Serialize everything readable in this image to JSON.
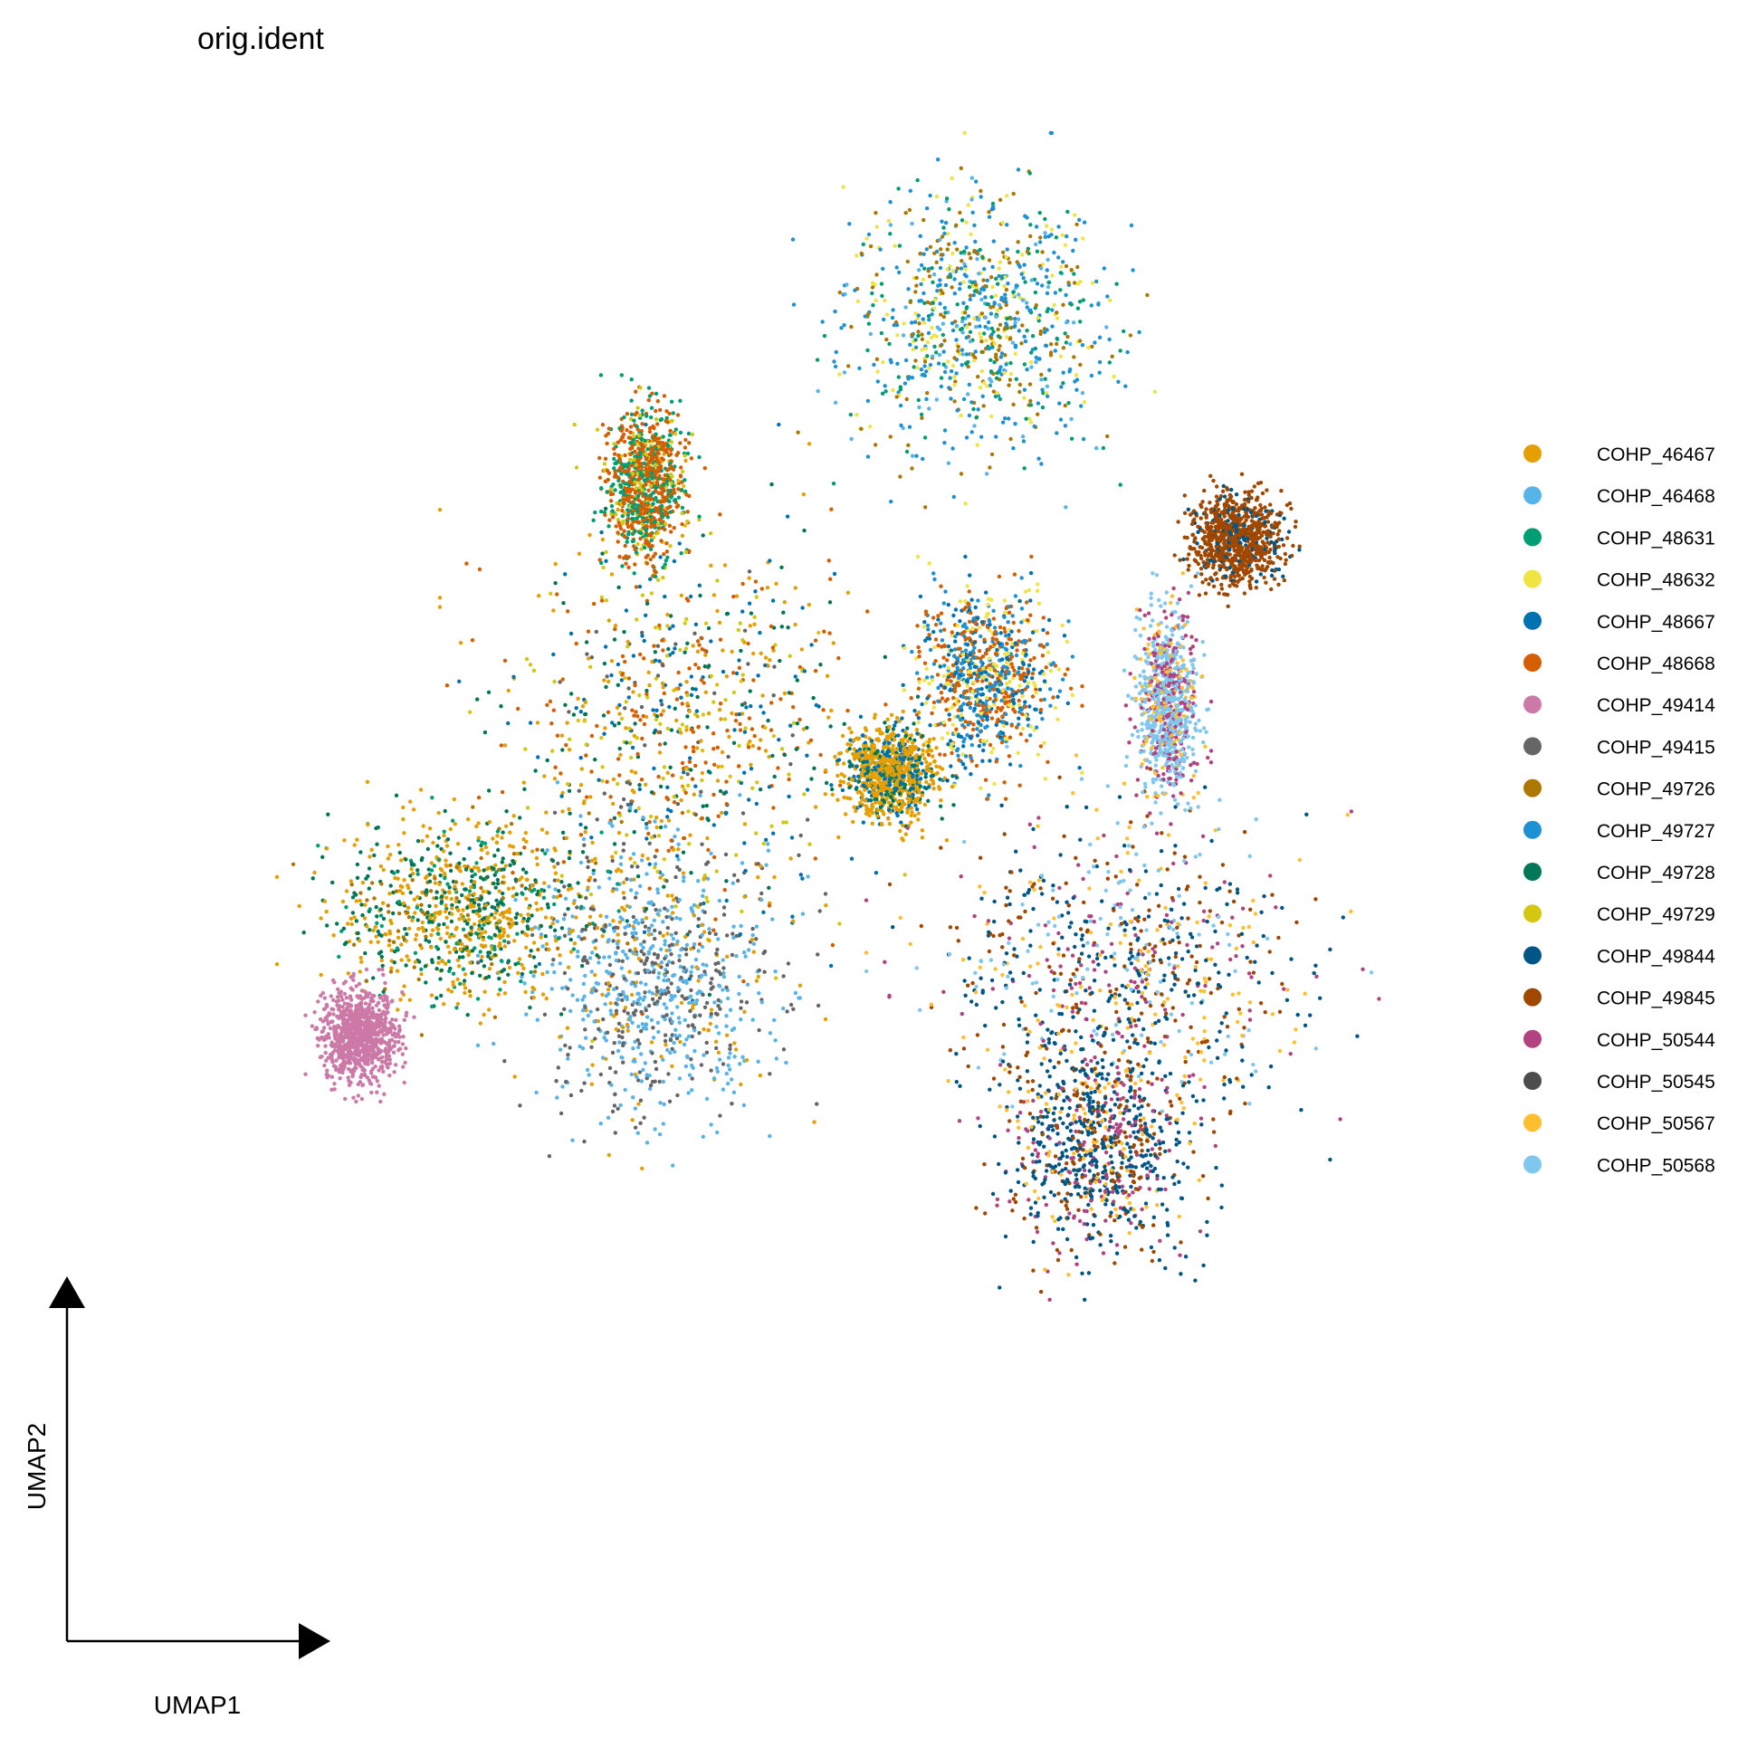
{
  "chart_data": {
    "type": "scatter",
    "title": "orig.ident",
    "xlabel": "UMAP1",
    "ylabel": "UMAP2",
    "grid": false,
    "axes": "arrow-stubs (no tick labels)",
    "legend_position": "right",
    "series": [
      {
        "name": "COHP_46467",
        "color": "#E69F00"
      },
      {
        "name": "COHP_46468",
        "color": "#56B4E9"
      },
      {
        "name": "COHP_48631",
        "color": "#009E73"
      },
      {
        "name": "COHP_48632",
        "color": "#F0E442"
      },
      {
        "name": "COHP_48667",
        "color": "#0072B2"
      },
      {
        "name": "COHP_48668",
        "color": "#D55E00"
      },
      {
        "name": "COHP_49414",
        "color": "#CC79A7"
      },
      {
        "name": "COHP_49415",
        "color": "#666666"
      },
      {
        "name": "COHP_49726",
        "color": "#AD7700"
      },
      {
        "name": "COHP_49727",
        "color": "#1C91D4"
      },
      {
        "name": "COHP_49728",
        "color": "#007756"
      },
      {
        "name": "COHP_49729",
        "color": "#D5C711"
      },
      {
        "name": "COHP_49844",
        "color": "#005685"
      },
      {
        "name": "COHP_49845",
        "color": "#A04700"
      },
      {
        "name": "COHP_50544",
        "color": "#B14380"
      },
      {
        "name": "COHP_50545",
        "color": "#4D4D4D"
      },
      {
        "name": "COHP_50567",
        "color": "#FFBE2D"
      },
      {
        "name": "COHP_50568",
        "color": "#80C7EF"
      }
    ],
    "clusters": [
      {
        "id": "top",
        "cx": 0.62,
        "cy": 0.82,
        "rx": 0.085,
        "ry": 0.085,
        "mix": {
          "COHP_49726": 3,
          "COHP_48631": 2,
          "COHP_48632": 2,
          "COHP_49727": 4,
          "COHP_46468": 1
        }
      },
      {
        "id": "left-main",
        "cx": 0.4,
        "cy": 0.52,
        "rx": 0.11,
        "ry": 0.14,
        "mix": {
          "COHP_48668": 4,
          "COHP_46467": 3,
          "COHP_49729": 3,
          "COHP_49728": 3,
          "COHP_48667": 3,
          "COHP_49415": 1
        }
      },
      {
        "id": "left-lower",
        "cx": 0.38,
        "cy": 0.34,
        "rx": 0.08,
        "ry": 0.09,
        "mix": {
          "COHP_46468": 4,
          "COHP_49415": 3,
          "COHP_46467": 1
        }
      },
      {
        "id": "left-arm",
        "cx": 0.24,
        "cy": 0.39,
        "rx": 0.085,
        "ry": 0.06,
        "mix": {
          "COHP_46467": 4,
          "COHP_49728": 3,
          "COHP_48631": 1,
          "COHP_49726": 1
        }
      },
      {
        "id": "left-tail",
        "cx": 0.165,
        "cy": 0.3,
        "rx": 0.025,
        "ry": 0.03,
        "mix": {
          "COHP_49414": 5
        }
      },
      {
        "id": "left-spur",
        "cx": 0.375,
        "cy": 0.7,
        "rx": 0.025,
        "ry": 0.05,
        "mix": {
          "COHP_48668": 3,
          "COHP_48631": 2,
          "COHP_49729": 1
        }
      },
      {
        "id": "mid-cluster",
        "cx": 0.625,
        "cy": 0.56,
        "rx": 0.045,
        "ry": 0.055,
        "mix": {
          "COHP_48668": 3,
          "COHP_48632": 2,
          "COHP_48667": 2,
          "COHP_49727": 2
        }
      },
      {
        "id": "mid-small",
        "cx": 0.555,
        "cy": 0.49,
        "rx": 0.03,
        "ry": 0.03,
        "mix": {
          "COHP_46467": 3,
          "COHP_49728": 1,
          "COHP_48667": 1
        }
      },
      {
        "id": "right-main",
        "cx": 0.73,
        "cy": 0.35,
        "rx": 0.12,
        "ry": 0.1,
        "mix": {
          "COHP_49844": 4,
          "COHP_49845": 3,
          "COHP_50544": 2,
          "COHP_50567": 2,
          "COHP_50568": 2
        }
      },
      {
        "id": "right-lower",
        "cx": 0.71,
        "cy": 0.22,
        "rx": 0.06,
        "ry": 0.07,
        "mix": {
          "COHP_49844": 5,
          "COHP_49845": 2,
          "COHP_50544": 2,
          "COHP_50567": 1
        }
      },
      {
        "id": "right-top",
        "cx": 0.81,
        "cy": 0.66,
        "rx": 0.03,
        "ry": 0.03,
        "mix": {
          "COHP_49845": 5,
          "COHP_49844": 1
        }
      },
      {
        "id": "right-streak",
        "cx": 0.76,
        "cy": 0.54,
        "rx": 0.02,
        "ry": 0.06,
        "mix": {
          "COHP_50544": 2,
          "COHP_50568": 4,
          "COHP_50567": 1
        }
      }
    ]
  }
}
